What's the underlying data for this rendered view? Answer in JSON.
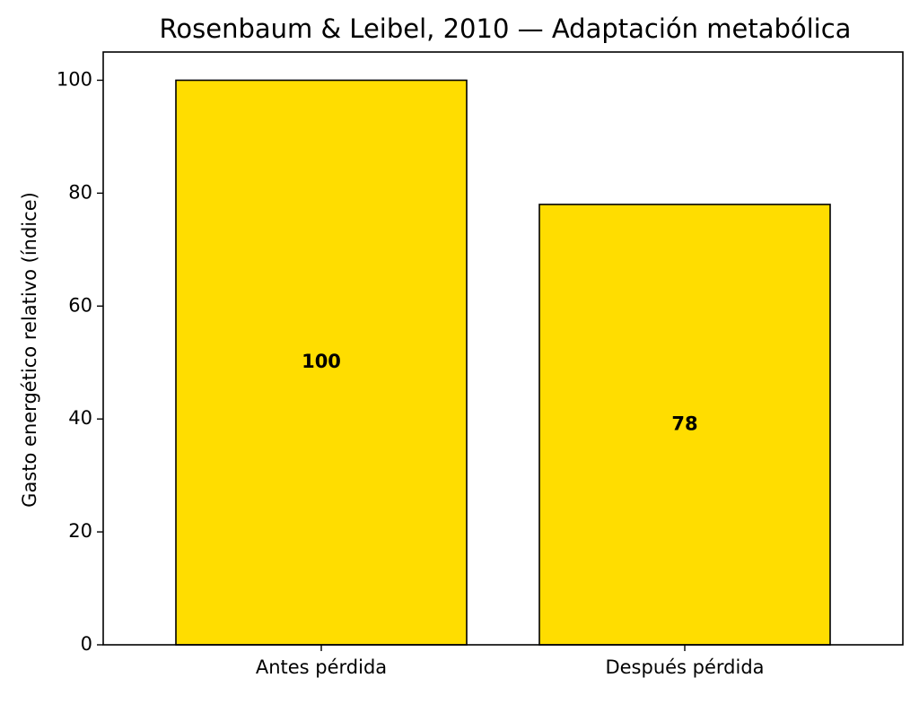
{
  "chart_data": {
    "type": "bar",
    "title": "Rosenbaum & Leibel, 2010 — Adaptación metabólica",
    "xlabel": "",
    "ylabel": "Gasto energético relativo (índice)",
    "categories": [
      "Antes pérdida",
      "Después pérdida"
    ],
    "values": [
      100,
      78
    ],
    "data_labels": [
      "100",
      "78"
    ],
    "ylim": [
      0,
      105
    ],
    "yticks": [
      0,
      20,
      40,
      60,
      80,
      100
    ],
    "bar_color": "#FFDD00",
    "bar_edge_color": "#000000",
    "grid": false,
    "legend": "none"
  }
}
